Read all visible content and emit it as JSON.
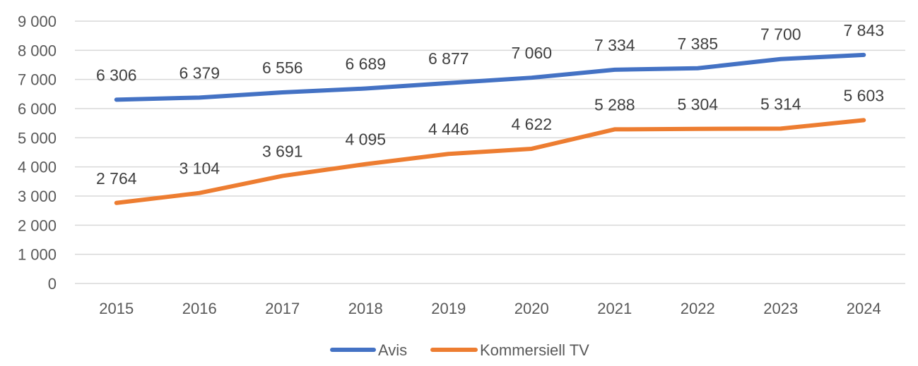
{
  "chart_data": {
    "type": "line",
    "title": "",
    "xlabel": "",
    "ylabel": "",
    "categories": [
      "2015",
      "2016",
      "2017",
      "2018",
      "2019",
      "2020",
      "2021",
      "2022",
      "2023",
      "2024"
    ],
    "ylim": [
      0,
      9000
    ],
    "yticks": [
      0,
      1000,
      2000,
      3000,
      4000,
      5000,
      6000,
      7000,
      8000,
      9000
    ],
    "ytick_labels": [
      "0",
      "1 000",
      "2 000",
      "3 000",
      "4 000",
      "5 000",
      "6 000",
      "7 000",
      "8 000",
      "9 000"
    ],
    "grid": true,
    "legend_position": "bottom",
    "series": [
      {
        "name": "Avis",
        "color": "#4472C4",
        "values": [
          6306,
          6379,
          6556,
          6689,
          6877,
          7060,
          7334,
          7385,
          7700,
          7843
        ],
        "labels": [
          "6 306",
          "6 379",
          "6 556",
          "6 689",
          "6 877",
          "7 060",
          "7 334",
          "7 385",
          "7 700",
          "7 843"
        ]
      },
      {
        "name": "Kommersiell TV",
        "color": "#ED7D31",
        "values": [
          2764,
          3104,
          3691,
          4095,
          4446,
          4622,
          5288,
          5304,
          5314,
          5603
        ],
        "labels": [
          "2 764",
          "3 104",
          "3 691",
          "4 095",
          "4 446",
          "4 622",
          "5 288",
          "5 304",
          "5 314",
          "5 603"
        ]
      }
    ]
  }
}
